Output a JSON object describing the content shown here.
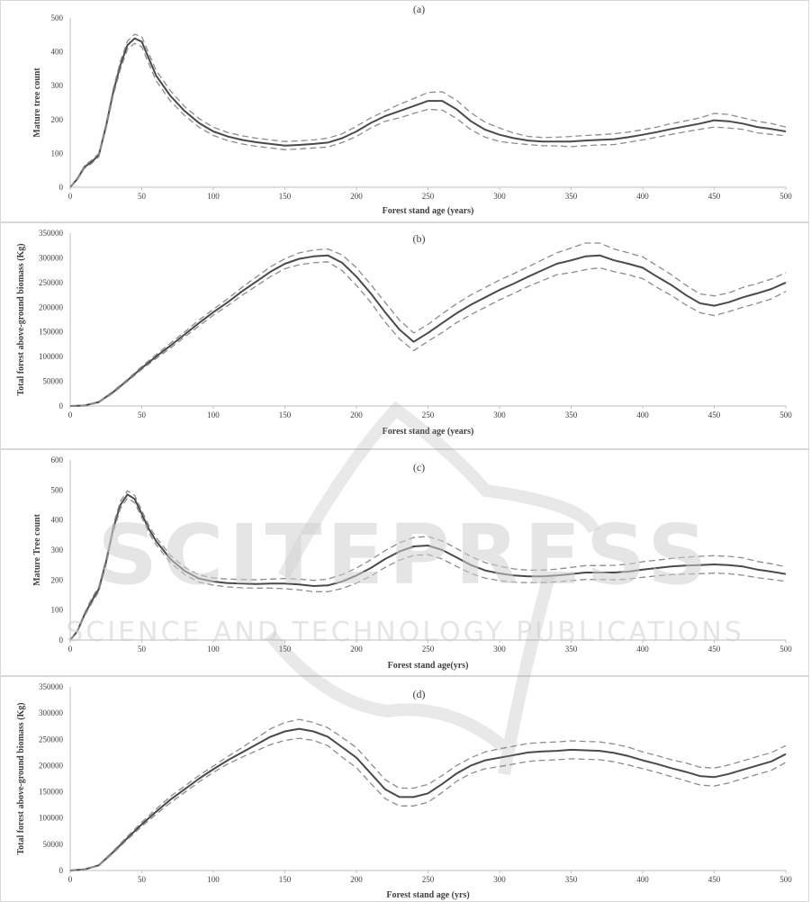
{
  "colors": {
    "mean": "#4a4a4a",
    "bounds": "#8c8c8c",
    "axis": "#bfbfbf",
    "watermark": "#c9c9c9"
  },
  "watermark": {
    "line1": "SCITEPRESS",
    "line2": "SCIENCE AND TECHNOLOGY PUBLICATIONS"
  },
  "chart_data": [
    {
      "type": "line",
      "panel_label": "(a)",
      "xlabel": "Forest stand age (years)",
      "ylabel": "Mature tree count",
      "xlim": [
        0,
        500
      ],
      "ylim": [
        0,
        500
      ],
      "xticks": [
        0,
        50,
        100,
        150,
        200,
        250,
        300,
        350,
        400,
        450,
        500
      ],
      "yticks": [
        0,
        100,
        200,
        300,
        400,
        500
      ],
      "x": [
        0,
        5,
        10,
        15,
        20,
        25,
        30,
        35,
        40,
        45,
        50,
        55,
        60,
        70,
        80,
        90,
        100,
        110,
        120,
        130,
        140,
        150,
        160,
        170,
        180,
        190,
        200,
        210,
        220,
        230,
        240,
        250,
        260,
        270,
        280,
        290,
        300,
        310,
        320,
        330,
        340,
        350,
        360,
        370,
        380,
        390,
        400,
        410,
        420,
        430,
        440,
        450,
        460,
        470,
        480,
        490,
        500
      ],
      "series": [
        {
          "values": [
            0,
            25,
            60,
            75,
            95,
            180,
            280,
            360,
            420,
            440,
            430,
            380,
            330,
            270,
            225,
            190,
            165,
            150,
            140,
            133,
            128,
            123,
            125,
            128,
            132,
            145,
            165,
            190,
            210,
            225,
            240,
            255,
            255,
            230,
            195,
            170,
            155,
            145,
            138,
            135,
            135,
            135,
            138,
            140,
            142,
            148,
            155,
            163,
            172,
            180,
            188,
            198,
            195,
            188,
            178,
            172,
            165
          ]
        },
        {
          "values": [
            0,
            28,
            64,
            80,
            100,
            188,
            290,
            372,
            432,
            452,
            445,
            395,
            345,
            285,
            238,
            203,
            177,
            162,
            152,
            145,
            140,
            135,
            137,
            140,
            145,
            158,
            180,
            205,
            225,
            245,
            262,
            280,
            282,
            257,
            220,
            192,
            175,
            160,
            150,
            147,
            148,
            150,
            153,
            155,
            158,
            163,
            170,
            178,
            188,
            196,
            205,
            218,
            215,
            205,
            195,
            188,
            178
          ]
        },
        {
          "values": [
            0,
            22,
            56,
            70,
            90,
            172,
            270,
            348,
            408,
            425,
            415,
            365,
            315,
            255,
            212,
            177,
            153,
            138,
            128,
            121,
            116,
            111,
            113,
            116,
            119,
            132,
            150,
            175,
            195,
            205,
            218,
            230,
            228,
            203,
            170,
            148,
            135,
            130,
            126,
            123,
            122,
            120,
            123,
            125,
            126,
            133,
            140,
            148,
            156,
            164,
            171,
            178,
            175,
            171,
            161,
            156,
            152
          ]
        }
      ]
    },
    {
      "type": "line",
      "panel_label": "(b)",
      "xlabel": "Forest stand age (years)",
      "ylabel": "Total forest above-ground biomass (Kg)",
      "xlim": [
        0,
        500
      ],
      "ylim": [
        0,
        350000
      ],
      "xticks": [
        0,
        50,
        100,
        150,
        200,
        250,
        300,
        350,
        400,
        450,
        500
      ],
      "yticks": [
        0,
        50000,
        100000,
        150000,
        200000,
        250000,
        300000,
        350000
      ],
      "x": [
        0,
        10,
        20,
        30,
        40,
        50,
        60,
        70,
        80,
        90,
        100,
        110,
        120,
        130,
        140,
        150,
        160,
        170,
        180,
        190,
        200,
        210,
        220,
        230,
        240,
        250,
        260,
        270,
        280,
        290,
        300,
        310,
        320,
        330,
        340,
        350,
        360,
        370,
        380,
        390,
        400,
        410,
        420,
        430,
        440,
        450,
        460,
        470,
        480,
        490,
        500
      ],
      "series": [
        {
          "values": [
            0,
            1000,
            8000,
            28000,
            52000,
            77000,
            100000,
            122000,
            145000,
            168000,
            190000,
            210000,
            232000,
            252000,
            272000,
            288000,
            298000,
            303000,
            305000,
            290000,
            262000,
            228000,
            190000,
            155000,
            130000,
            148000,
            168000,
            188000,
            205000,
            220000,
            235000,
            248000,
            262000,
            275000,
            288000,
            295000,
            303000,
            305000,
            295000,
            288000,
            280000,
            262000,
            245000,
            225000,
            208000,
            203000,
            210000,
            220000,
            228000,
            237000,
            250000
          ]
        },
        {
          "values": [
            0,
            1200,
            9000,
            30000,
            54000,
            80000,
            104000,
            127000,
            150000,
            174000,
            196000,
            217000,
            240000,
            261000,
            282000,
            298000,
            310000,
            316000,
            318000,
            306000,
            280000,
            246000,
            210000,
            174000,
            148000,
            165000,
            187000,
            207000,
            225000,
            240000,
            255000,
            268000,
            282000,
            296000,
            310000,
            320000,
            330000,
            330000,
            318000,
            310000,
            302000,
            284000,
            266000,
            245000,
            227000,
            223000,
            229000,
            240000,
            248000,
            257000,
            270000
          ]
        },
        {
          "values": [
            0,
            800,
            7000,
            26000,
            50000,
            74000,
            96000,
            117000,
            140000,
            162000,
            184000,
            203000,
            224000,
            243000,
            262000,
            278000,
            286000,
            290000,
            292000,
            274000,
            244000,
            210000,
            170000,
            136000,
            112000,
            131000,
            149000,
            169000,
            185000,
            200000,
            215000,
            228000,
            242000,
            254000,
            266000,
            270000,
            276000,
            280000,
            272000,
            266000,
            258000,
            240000,
            224000,
            205000,
            189000,
            183000,
            191000,
            200000,
            208000,
            217000,
            232000
          ]
        }
      ]
    },
    {
      "type": "line",
      "panel_label": "(c)",
      "xlabel": "Forest stand age(yrs)",
      "ylabel": "Mature Tree count",
      "xlim": [
        0,
        500
      ],
      "ylim": [
        0,
        600
      ],
      "xticks": [
        0,
        50,
        100,
        150,
        200,
        250,
        300,
        350,
        400,
        450,
        500
      ],
      "yticks": [
        0,
        100,
        200,
        300,
        400,
        500,
        600
      ],
      "x": [
        0,
        5,
        10,
        15,
        20,
        25,
        30,
        35,
        40,
        45,
        50,
        55,
        60,
        70,
        80,
        90,
        100,
        110,
        120,
        130,
        140,
        150,
        160,
        170,
        180,
        190,
        200,
        210,
        220,
        230,
        240,
        250,
        260,
        270,
        280,
        290,
        300,
        310,
        320,
        330,
        340,
        350,
        360,
        370,
        380,
        390,
        400,
        410,
        420,
        430,
        440,
        450,
        460,
        470,
        480,
        490,
        500
      ],
      "series": [
        {
          "values": [
            0,
            30,
            85,
            130,
            170,
            260,
            370,
            450,
            485,
            470,
            420,
            370,
            330,
            270,
            230,
            205,
            195,
            190,
            188,
            187,
            188,
            188,
            185,
            180,
            182,
            195,
            215,
            240,
            270,
            295,
            312,
            315,
            300,
            275,
            250,
            232,
            222,
            215,
            212,
            212,
            215,
            220,
            225,
            225,
            225,
            228,
            235,
            240,
            245,
            248,
            250,
            252,
            250,
            245,
            235,
            228,
            220
          ]
        },
        {
          "values": [
            0,
            33,
            90,
            138,
            178,
            270,
            382,
            462,
            497,
            482,
            432,
            382,
            342,
            282,
            242,
            217,
            207,
            203,
            202,
            201,
            203,
            205,
            203,
            199,
            203,
            218,
            240,
            267,
            298,
            324,
            342,
            345,
            330,
            305,
            278,
            258,
            246,
            237,
            233,
            233,
            236,
            242,
            248,
            248,
            249,
            253,
            261,
            266,
            272,
            276,
            279,
            281,
            279,
            274,
            262,
            254,
            244
          ]
        },
        {
          "values": [
            0,
            27,
            80,
            122,
            162,
            250,
            358,
            438,
            473,
            458,
            408,
            358,
            318,
            258,
            218,
            193,
            183,
            177,
            174,
            173,
            173,
            171,
            167,
            161,
            161,
            172,
            190,
            213,
            242,
            266,
            282,
            285,
            270,
            245,
            222,
            206,
            198,
            193,
            191,
            191,
            194,
            198,
            202,
            202,
            201,
            203,
            209,
            214,
            218,
            220,
            221,
            223,
            221,
            216,
            208,
            202,
            196
          ]
        }
      ]
    },
    {
      "type": "line",
      "panel_label": "(d)",
      "xlabel": "Forest stand age (yrs)",
      "ylabel": "Total forest above-ground biomass (Kg)",
      "xlim": [
        0,
        500
      ],
      "ylim": [
        0,
        350000
      ],
      "xticks": [
        0,
        50,
        100,
        150,
        200,
        250,
        300,
        350,
        400,
        450,
        500
      ],
      "yticks": [
        0,
        50000,
        100000,
        150000,
        200000,
        250000,
        300000,
        350000
      ],
      "x": [
        0,
        10,
        20,
        30,
        40,
        50,
        60,
        70,
        80,
        90,
        100,
        110,
        120,
        130,
        140,
        150,
        160,
        170,
        180,
        190,
        200,
        210,
        220,
        230,
        240,
        250,
        260,
        270,
        280,
        290,
        300,
        310,
        320,
        330,
        340,
        350,
        360,
        370,
        380,
        390,
        400,
        410,
        420,
        430,
        440,
        450,
        460,
        470,
        480,
        490,
        500
      ],
      "series": [
        {
          "values": [
            0,
            2000,
            10000,
            35000,
            62000,
            88000,
            112000,
            135000,
            155000,
            175000,
            193000,
            210000,
            225000,
            240000,
            255000,
            265000,
            270000,
            265000,
            255000,
            235000,
            215000,
            185000,
            155000,
            140000,
            140000,
            147000,
            165000,
            185000,
            200000,
            210000,
            215000,
            220000,
            225000,
            227000,
            228000,
            230000,
            229000,
            228000,
            224000,
            218000,
            210000,
            203000,
            195000,
            188000,
            180000,
            178000,
            184000,
            192000,
            200000,
            208000,
            222000
          ]
        },
        {
          "values": [
            0,
            2300,
            11000,
            37000,
            65000,
            92000,
            117000,
            141000,
            161000,
            181000,
            199000,
            217000,
            234000,
            252000,
            270000,
            282000,
            288000,
            282000,
            272000,
            254000,
            234000,
            204000,
            173000,
            157000,
            157000,
            164000,
            181000,
            200000,
            215000,
            226000,
            232000,
            237000,
            242000,
            244000,
            245000,
            247000,
            246000,
            245000,
            241000,
            235000,
            226000,
            219000,
            211000,
            205000,
            197000,
            195000,
            201000,
            209000,
            217000,
            225000,
            238000
          ]
        },
        {
          "values": [
            0,
            1700,
            9000,
            33000,
            59000,
            84000,
            107000,
            129000,
            149000,
            169000,
            187000,
            203000,
            216000,
            228000,
            240000,
            248000,
            252000,
            248000,
            238000,
            216000,
            196000,
            166000,
            137000,
            123000,
            123000,
            130000,
            149000,
            170000,
            185000,
            194000,
            198000,
            203000,
            208000,
            210000,
            211000,
            213000,
            212000,
            211000,
            207000,
            201000,
            194000,
            187000,
            179000,
            171000,
            163000,
            161000,
            167000,
            175000,
            183000,
            191000,
            206000
          ]
        }
      ]
    }
  ]
}
